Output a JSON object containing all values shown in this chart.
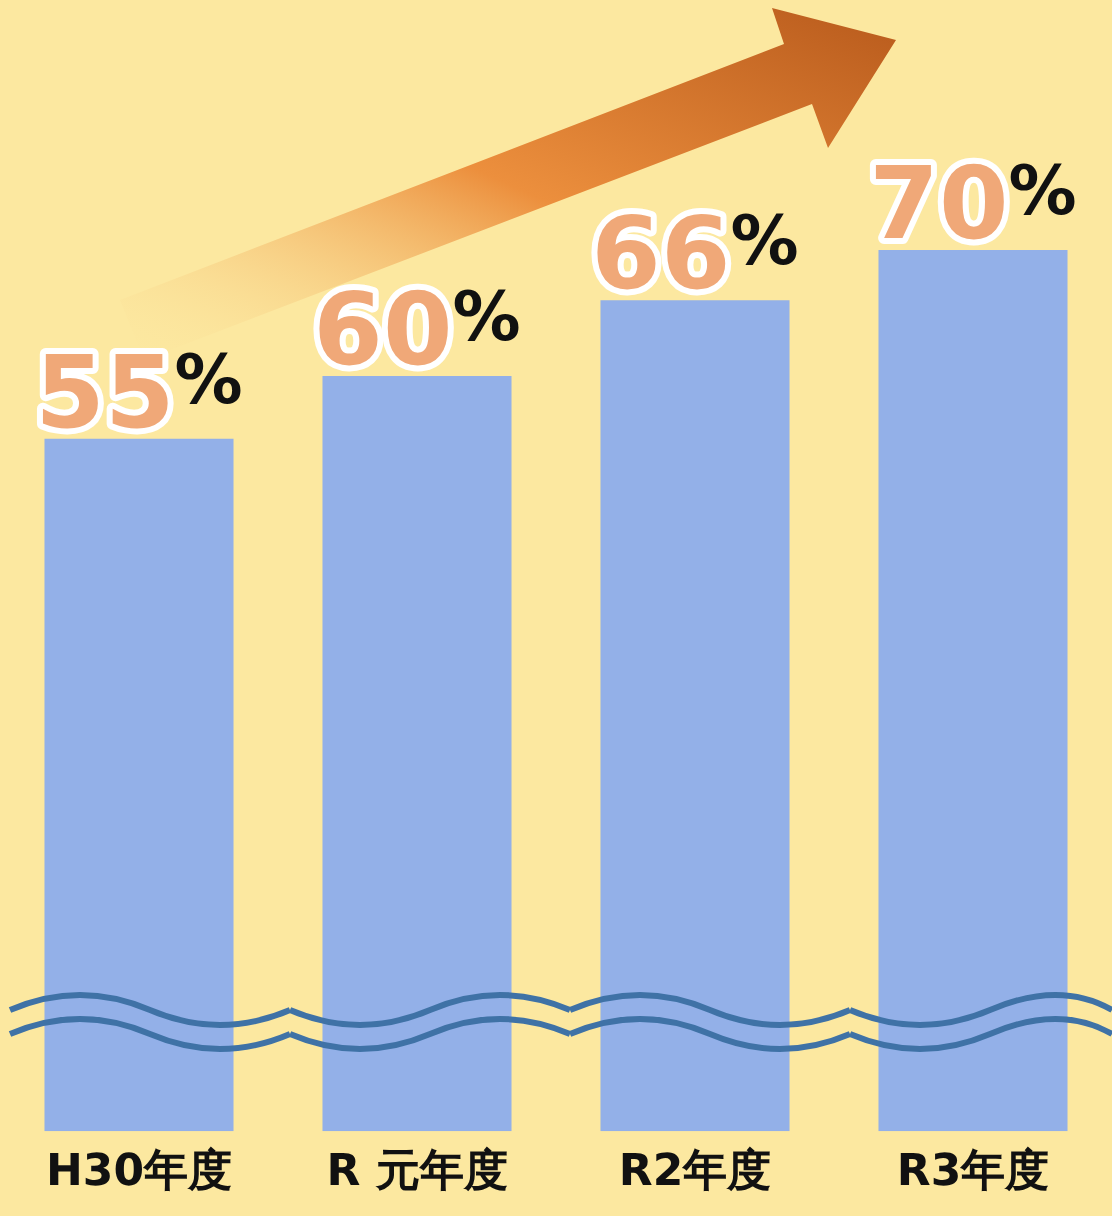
{
  "chart_data": {
    "type": "bar",
    "categories": [
      "H30年度",
      "R 元年度",
      "R2年度",
      "R3年度"
    ],
    "values": [
      55,
      60,
      66,
      70
    ],
    "value_labels": [
      "55%",
      "60%",
      "66%",
      "70%"
    ],
    "color": "#93b0e8",
    "tick_labels": "x",
    "grid": false,
    "legend": false
  }
}
